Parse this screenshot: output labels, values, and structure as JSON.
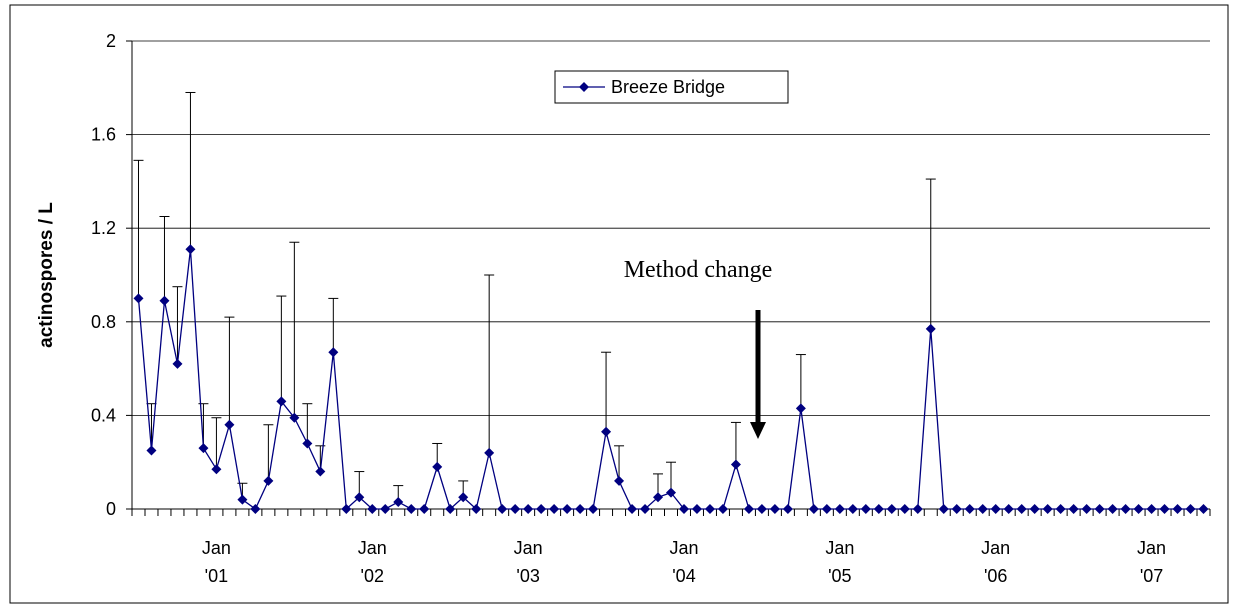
{
  "chart_data": {
    "type": "line",
    "ylabel": "actinospores / L",
    "annotation": "Method change",
    "legend": "upper center",
    "grid": true,
    "ylim": [
      0,
      2
    ],
    "yticks": [
      0,
      0.4,
      0.8,
      1.2,
      1.6,
      2
    ],
    "categories": [
      null,
      null,
      null,
      null,
      null,
      null,
      "Jan\n'01",
      null,
      null,
      null,
      null,
      null,
      null,
      null,
      null,
      null,
      null,
      null,
      "Jan\n'02",
      null,
      null,
      null,
      null,
      null,
      null,
      null,
      null,
      null,
      null,
      null,
      "Jan\n'03",
      null,
      null,
      null,
      null,
      null,
      null,
      null,
      null,
      null,
      null,
      null,
      "Jan\n'04",
      null,
      null,
      null,
      null,
      null,
      null,
      null,
      null,
      null,
      null,
      null,
      "Jan\n'05",
      null,
      null,
      null,
      null,
      null,
      null,
      null,
      null,
      null,
      null,
      null,
      "Jan\n'06",
      null,
      null,
      null,
      null,
      null,
      null,
      null,
      null,
      null,
      null,
      null,
      "Jan\n'07",
      null,
      null,
      null,
      null
    ],
    "series": [
      {
        "name": "Breeze Bridge",
        "color": "#000080",
        "values": [
          0.9,
          0.25,
          0.89,
          0.62,
          1.11,
          0.26,
          0.17,
          0.36,
          0.04,
          0,
          0.12,
          0.46,
          0.39,
          0.28,
          0.16,
          0.67,
          0,
          0.05,
          0,
          0,
          0.03,
          0,
          0,
          0.18,
          0,
          0.05,
          0,
          0.24,
          0,
          0,
          0,
          0,
          0,
          0,
          0,
          0,
          0.33,
          0.12,
          0,
          0,
          0.05,
          0.07,
          0,
          0,
          0,
          0,
          0.19,
          0,
          0,
          0,
          0,
          0.43,
          0,
          0,
          0,
          0,
          0,
          0,
          0,
          0,
          0,
          0.77,
          0,
          0,
          0,
          0,
          0,
          0,
          0,
          0,
          0,
          0,
          0,
          0,
          0,
          0,
          0,
          0,
          0,
          0,
          0,
          0,
          0
        ],
        "errors": [
          0.59,
          0.2,
          0.36,
          0.33,
          0.67,
          0.19,
          0.22,
          0.46,
          0.07,
          null,
          0.24,
          0.45,
          0.75,
          0.17,
          0.11,
          0.23,
          null,
          0.11,
          null,
          null,
          0.07,
          null,
          null,
          0.1,
          null,
          0.07,
          null,
          0.76,
          null,
          null,
          null,
          null,
          null,
          null,
          null,
          null,
          0.34,
          0.15,
          null,
          null,
          0.1,
          0.13,
          null,
          null,
          null,
          null,
          0.18,
          null,
          null,
          null,
          null,
          0.23,
          null,
          null,
          null,
          null,
          null,
          null,
          null,
          null,
          null,
          0.64,
          null,
          null,
          null,
          null,
          null,
          null,
          null,
          null,
          null,
          null,
          null,
          null,
          null,
          null,
          null,
          null,
          null,
          null,
          null,
          null,
          null
        ]
      }
    ]
  }
}
